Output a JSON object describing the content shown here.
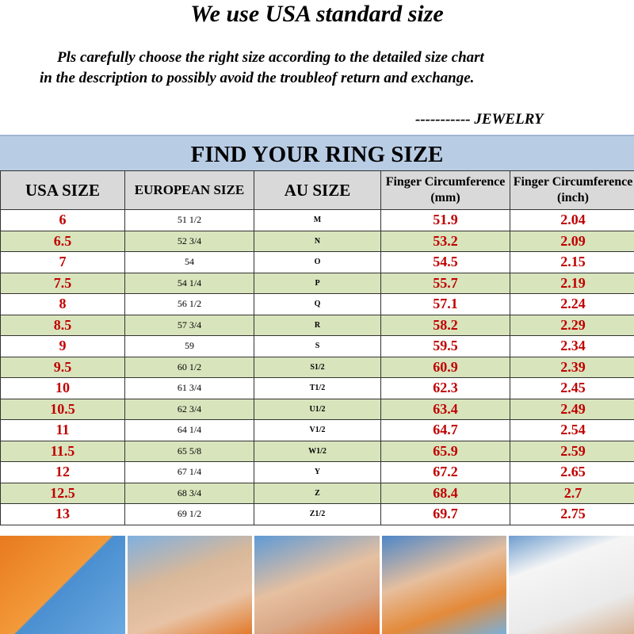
{
  "header": {
    "title": "We use USA standard size",
    "line1": "Pls carefully choose the right size according to the detailed size chart",
    "line2": "in the description to possibly avoid the troubleof return and exchange.",
    "signature": "-----------   JEWELRY"
  },
  "banner": "FIND YOUR RING SIZE",
  "columns": [
    "USA SIZE",
    "EUROPEAN SIZE",
    "AU SIZE",
    "Finger Circumference (mm)",
    "Finger Circumference (inch)"
  ],
  "rows": [
    [
      "6",
      "51  1/2",
      "M",
      "51.9",
      "2.04"
    ],
    [
      "6.5",
      "52 3/4",
      "N",
      "53.2",
      "2.09"
    ],
    [
      "7",
      "54",
      "O",
      "54.5",
      "2.15"
    ],
    [
      "7.5",
      "54 1/4",
      "P",
      "55.7",
      "2.19"
    ],
    [
      "8",
      "56 1/2",
      "Q",
      "57.1",
      "2.24"
    ],
    [
      "8.5",
      "57 3/4",
      "R",
      "58.2",
      "2.29"
    ],
    [
      "9",
      "59",
      "S",
      "59.5",
      "2.34"
    ],
    [
      "9.5",
      "60 1/2",
      "S1/2",
      "60.9",
      "2.39"
    ],
    [
      "10",
      "61 3/4",
      "T1/2",
      "62.3",
      "2.45"
    ],
    [
      "10.5",
      "62 3/4",
      "U1/2",
      "63.4",
      "2.49"
    ],
    [
      "11",
      "64 1/4",
      "V1/2",
      "64.7",
      "2.54"
    ],
    [
      "11.5",
      "65 5/8",
      "W1/2",
      "65.9",
      "2.59"
    ],
    [
      "12",
      "67 1/4",
      "Y",
      "67.2",
      "2.65"
    ],
    [
      "12.5",
      "68 3/4",
      "Z",
      "68.4",
      "2.7"
    ],
    [
      "13",
      "69 1/2",
      "Z1/2",
      "69.7",
      "2.75"
    ]
  ],
  "photos": [
    "cut-paper-strip",
    "wrap-strip-around-finger",
    "mark-strip",
    "measure-with-ruler",
    "compare-with-chart"
  ]
}
